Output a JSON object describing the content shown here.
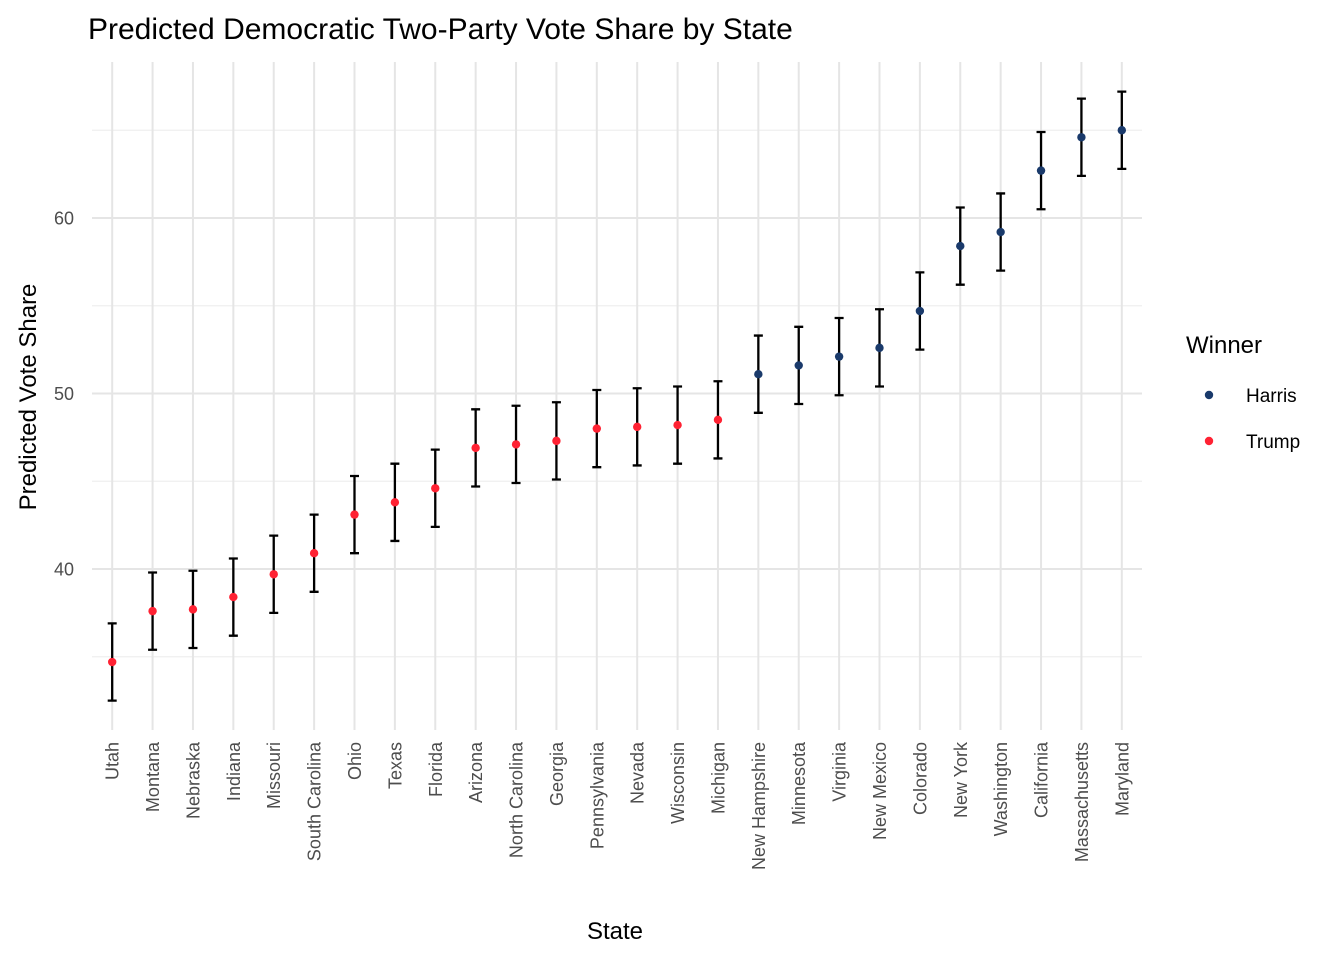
{
  "chart_data": {
    "type": "scatter",
    "title": "Predicted Democratic Two-Party Vote Share by State",
    "xlabel": "State",
    "ylabel": "Predicted Vote Share",
    "ylim": [
      31,
      69
    ],
    "y_ticks": [
      40,
      50,
      60
    ],
    "grid": true,
    "legend": {
      "title": "Winner",
      "placement": "right",
      "entries": [
        {
          "name": "Harris",
          "color": "#1a3a6b"
        },
        {
          "name": "Trump",
          "color": "#ff2233"
        }
      ]
    },
    "points": [
      {
        "state": "Utah",
        "value": 34.7,
        "lower": 32.5,
        "upper": 36.9,
        "winner": "Trump"
      },
      {
        "state": "Montana",
        "value": 37.6,
        "lower": 35.4,
        "upper": 39.8,
        "winner": "Trump"
      },
      {
        "state": "Nebraska",
        "value": 37.7,
        "lower": 35.5,
        "upper": 39.9,
        "winner": "Trump"
      },
      {
        "state": "Indiana",
        "value": 38.4,
        "lower": 36.2,
        "upper": 40.6,
        "winner": "Trump"
      },
      {
        "state": "Missouri",
        "value": 39.7,
        "lower": 37.5,
        "upper": 41.9,
        "winner": "Trump"
      },
      {
        "state": "South Carolina",
        "value": 40.9,
        "lower": 38.7,
        "upper": 43.1,
        "winner": "Trump"
      },
      {
        "state": "Ohio",
        "value": 43.1,
        "lower": 40.9,
        "upper": 45.3,
        "winner": "Trump"
      },
      {
        "state": "Texas",
        "value": 43.8,
        "lower": 41.6,
        "upper": 46.0,
        "winner": "Trump"
      },
      {
        "state": "Florida",
        "value": 44.6,
        "lower": 42.4,
        "upper": 46.8,
        "winner": "Trump"
      },
      {
        "state": "Arizona",
        "value": 46.9,
        "lower": 44.7,
        "upper": 49.1,
        "winner": "Trump"
      },
      {
        "state": "North Carolina",
        "value": 47.1,
        "lower": 44.9,
        "upper": 49.3,
        "winner": "Trump"
      },
      {
        "state": "Georgia",
        "value": 47.3,
        "lower": 45.1,
        "upper": 49.5,
        "winner": "Trump"
      },
      {
        "state": "Pennsylvania",
        "value": 48.0,
        "lower": 45.8,
        "upper": 50.2,
        "winner": "Trump"
      },
      {
        "state": "Nevada",
        "value": 48.1,
        "lower": 45.9,
        "upper": 50.3,
        "winner": "Trump"
      },
      {
        "state": "Wisconsin",
        "value": 48.2,
        "lower": 46.0,
        "upper": 50.4,
        "winner": "Trump"
      },
      {
        "state": "Michigan",
        "value": 48.5,
        "lower": 46.3,
        "upper": 50.7,
        "winner": "Trump"
      },
      {
        "state": "New Hampshire",
        "value": 51.1,
        "lower": 48.9,
        "upper": 53.3,
        "winner": "Harris"
      },
      {
        "state": "Minnesota",
        "value": 51.6,
        "lower": 49.4,
        "upper": 53.8,
        "winner": "Harris"
      },
      {
        "state": "Virginia",
        "value": 52.1,
        "lower": 49.9,
        "upper": 54.3,
        "winner": "Harris"
      },
      {
        "state": "New Mexico",
        "value": 52.6,
        "lower": 50.4,
        "upper": 54.8,
        "winner": "Harris"
      },
      {
        "state": "Colorado",
        "value": 54.7,
        "lower": 52.5,
        "upper": 56.9,
        "winner": "Harris"
      },
      {
        "state": "New York",
        "value": 58.4,
        "lower": 56.2,
        "upper": 60.6,
        "winner": "Harris"
      },
      {
        "state": "Washington",
        "value": 59.2,
        "lower": 57.0,
        "upper": 61.4,
        "winner": "Harris"
      },
      {
        "state": "California",
        "value": 62.7,
        "lower": 60.5,
        "upper": 64.9,
        "winner": "Harris"
      },
      {
        "state": "Massachusetts",
        "value": 64.6,
        "lower": 62.4,
        "upper": 66.8,
        "winner": "Harris"
      },
      {
        "state": "Maryland",
        "value": 65.0,
        "lower": 62.8,
        "upper": 67.2,
        "winner": "Harris"
      }
    ]
  }
}
